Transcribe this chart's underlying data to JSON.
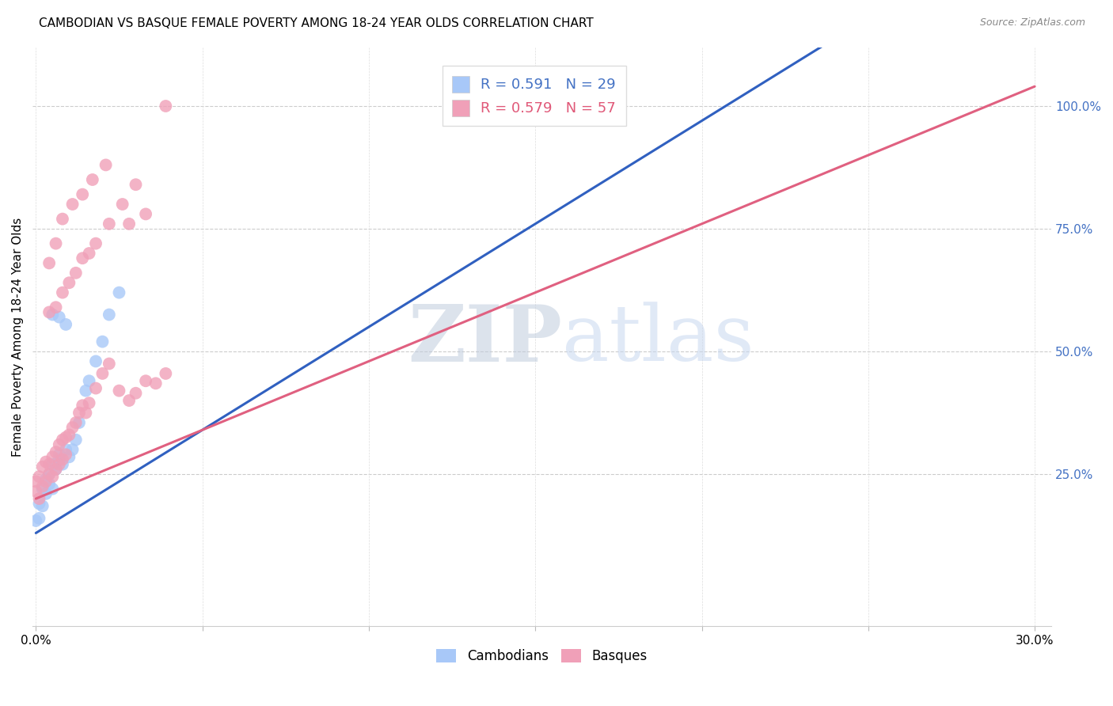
{
  "title": "CAMBODIAN VS BASQUE FEMALE POVERTY AMONG 18-24 YEAR OLDS CORRELATION CHART",
  "source": "Source: ZipAtlas.com",
  "ylabel": "Female Poverty Among 18-24 Year Olds",
  "y_tick_labels_right": [
    "100.0%",
    "75.0%",
    "50.0%",
    "25.0%"
  ],
  "y_tick_positions_right": [
    1.0,
    0.75,
    0.5,
    0.25
  ],
  "legend_label_cambodian": "Cambodians",
  "legend_label_basque": "Basques",
  "color_cambodian": "#A8C8F8",
  "color_basque": "#F0A0B8",
  "color_trend_cambodian": "#3060C0",
  "color_trend_basque": "#E06080",
  "watermark_zip": "ZIP",
  "watermark_atlas": "atlas",
  "watermark_color_zip": "#C0CCDD",
  "watermark_color_atlas": "#C8D8F0",
  "cam_slope": 4.2,
  "cam_intercept": 0.13,
  "bas_slope": 2.8,
  "bas_intercept": 0.2,
  "cam_x": [
    0.0,
    0.001,
    0.001,
    0.002,
    0.002,
    0.003,
    0.003,
    0.004,
    0.004,
    0.005,
    0.005,
    0.006,
    0.007,
    0.007,
    0.008,
    0.009,
    0.01,
    0.011,
    0.012,
    0.013,
    0.015,
    0.016,
    0.018,
    0.02,
    0.022,
    0.025,
    0.005,
    0.007,
    0.009
  ],
  "cam_y": [
    0.155,
    0.16,
    0.19,
    0.185,
    0.22,
    0.21,
    0.24,
    0.23,
    0.25,
    0.22,
    0.27,
    0.26,
    0.28,
    0.29,
    0.27,
    0.3,
    0.285,
    0.3,
    0.32,
    0.355,
    0.42,
    0.44,
    0.48,
    0.52,
    0.575,
    0.62,
    0.575,
    0.57,
    0.555
  ],
  "bas_x": [
    0.0,
    0.0,
    0.001,
    0.001,
    0.002,
    0.002,
    0.003,
    0.003,
    0.004,
    0.004,
    0.005,
    0.005,
    0.006,
    0.006,
    0.007,
    0.007,
    0.008,
    0.008,
    0.009,
    0.009,
    0.01,
    0.011,
    0.012,
    0.013,
    0.014,
    0.015,
    0.016,
    0.018,
    0.02,
    0.022,
    0.025,
    0.028,
    0.03,
    0.033,
    0.036,
    0.039,
    0.004,
    0.006,
    0.008,
    0.01,
    0.012,
    0.014,
    0.016,
    0.018,
    0.022,
    0.026,
    0.03,
    0.004,
    0.006,
    0.008,
    0.011,
    0.014,
    0.017,
    0.021,
    0.028,
    0.033,
    0.039
  ],
  "bas_y": [
    0.215,
    0.235,
    0.2,
    0.245,
    0.225,
    0.265,
    0.235,
    0.275,
    0.25,
    0.27,
    0.245,
    0.285,
    0.26,
    0.295,
    0.27,
    0.31,
    0.28,
    0.32,
    0.29,
    0.325,
    0.33,
    0.345,
    0.355,
    0.375,
    0.39,
    0.375,
    0.395,
    0.425,
    0.455,
    0.475,
    0.42,
    0.4,
    0.415,
    0.44,
    0.435,
    0.455,
    0.58,
    0.59,
    0.62,
    0.64,
    0.66,
    0.69,
    0.7,
    0.72,
    0.76,
    0.8,
    0.84,
    0.68,
    0.72,
    0.77,
    0.8,
    0.82,
    0.85,
    0.88,
    0.76,
    0.78,
    1.0
  ]
}
